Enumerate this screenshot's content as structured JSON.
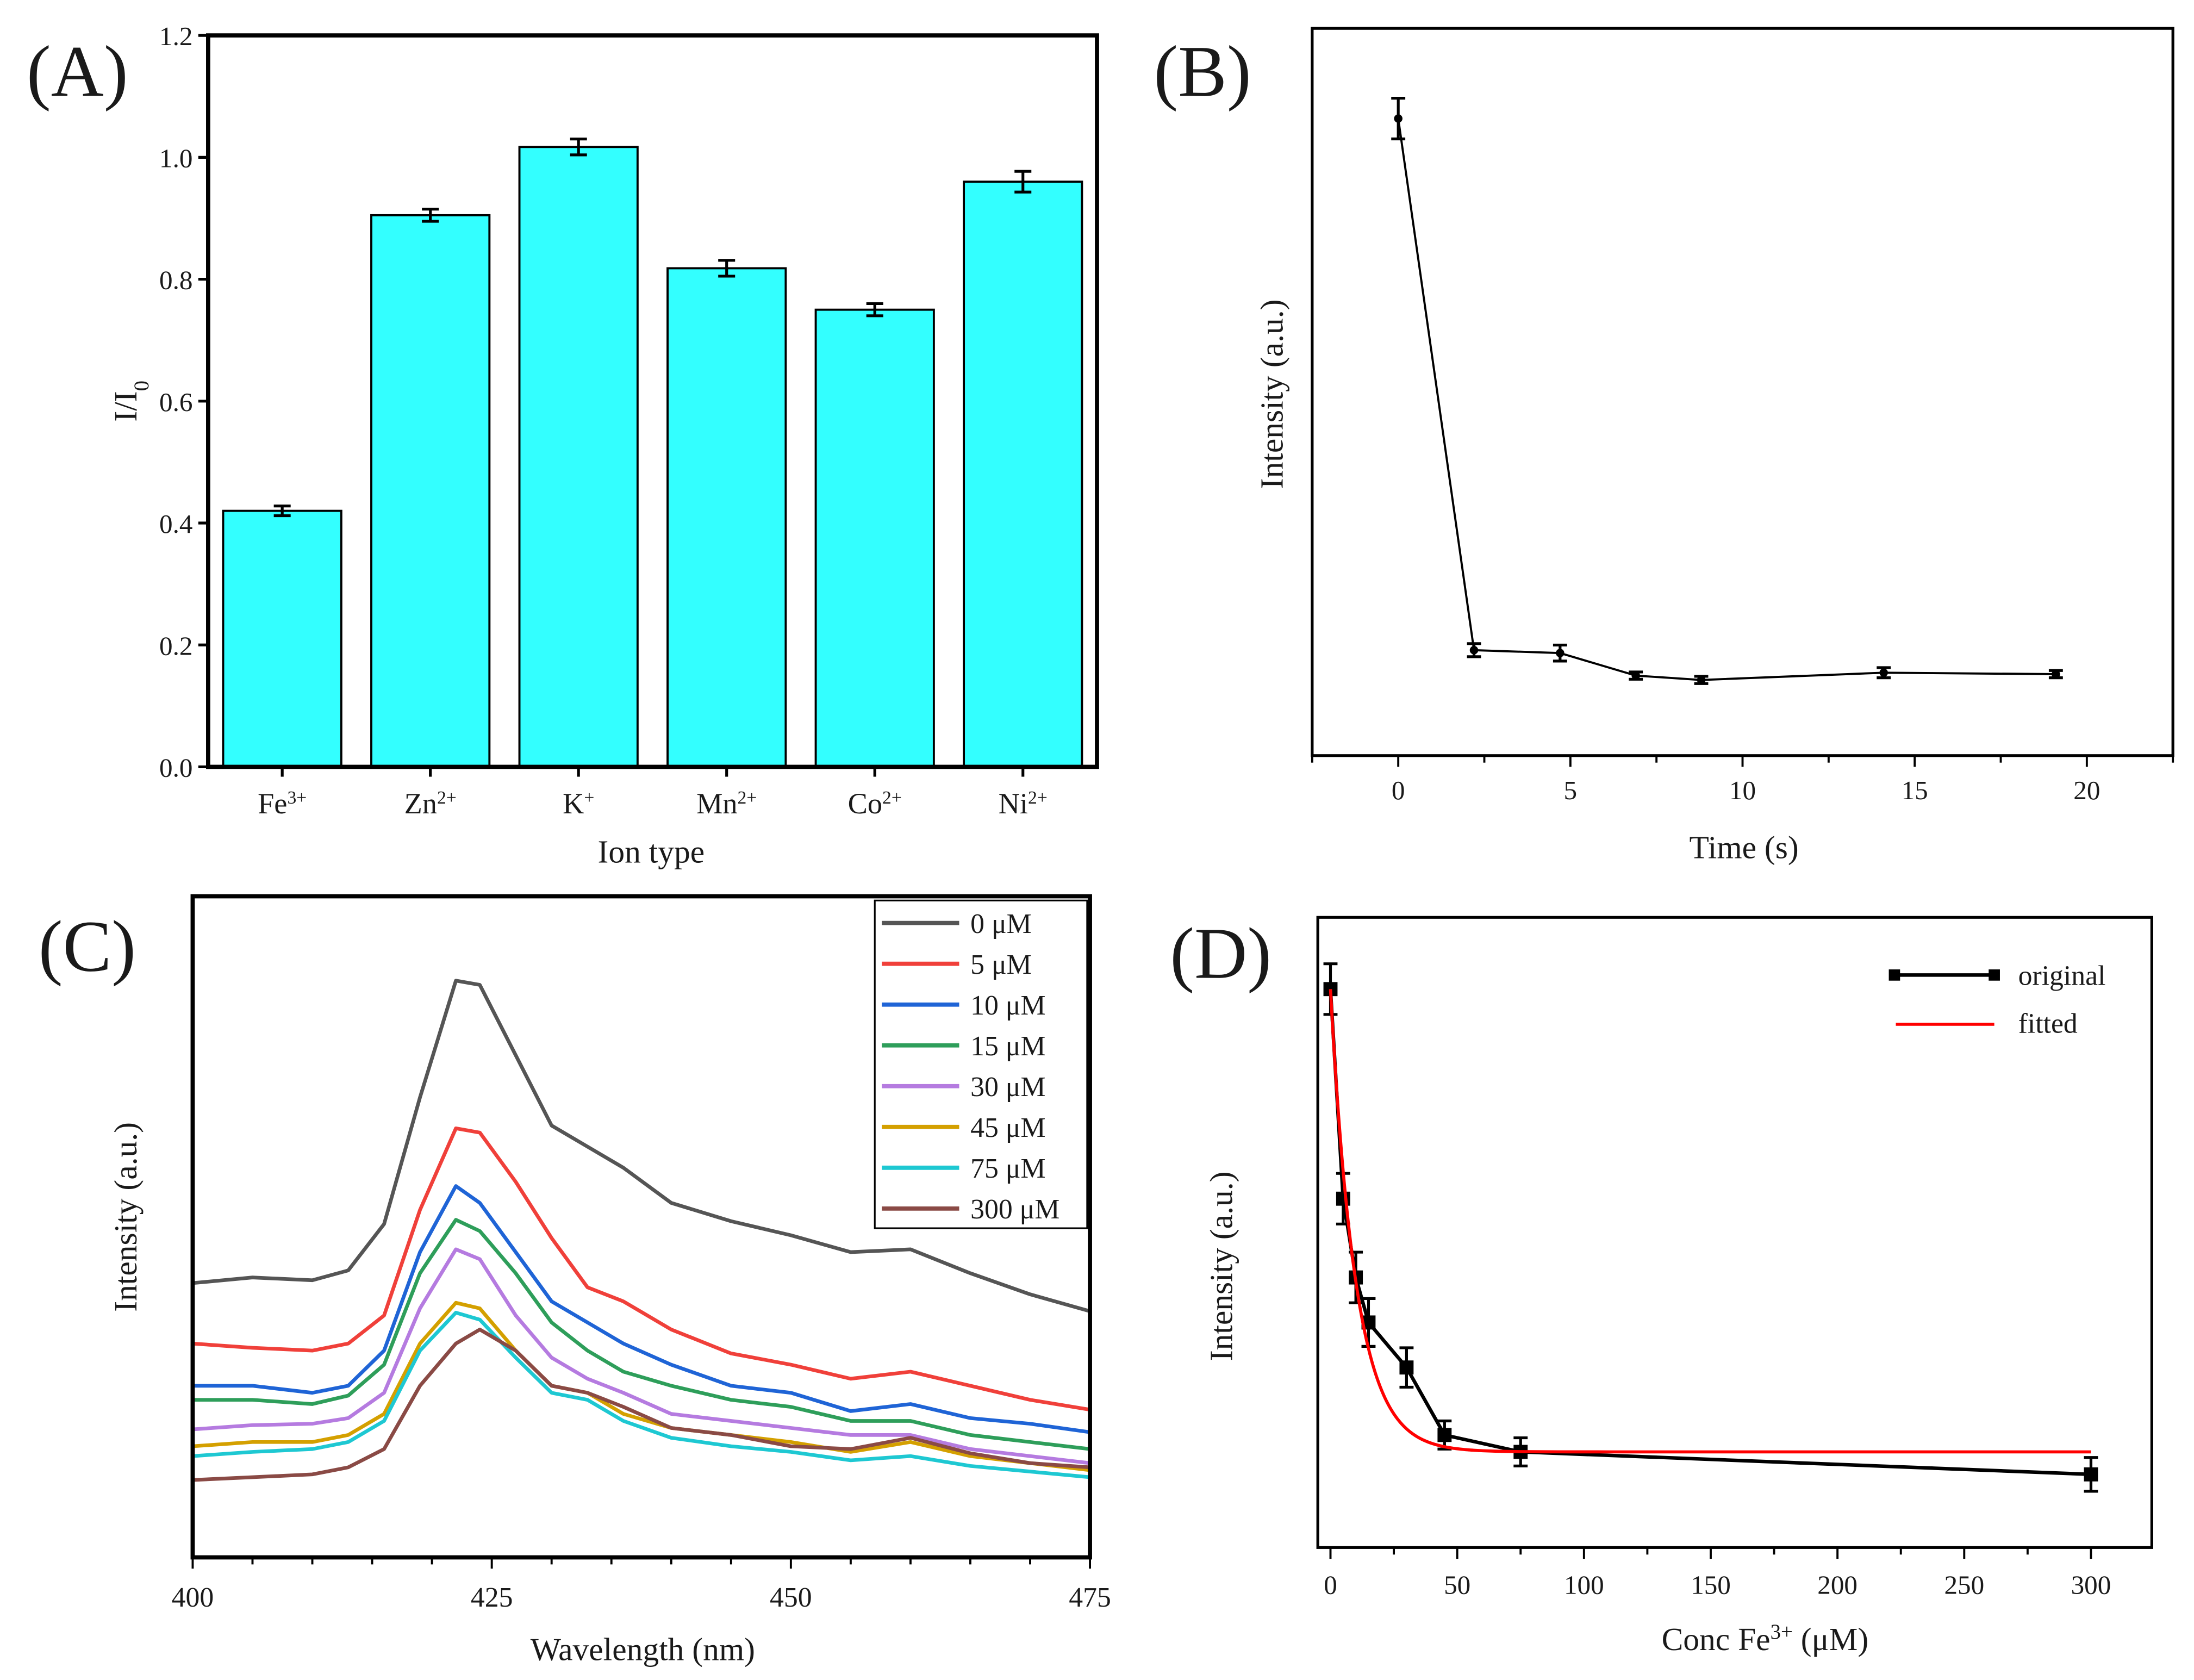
{
  "chart_data": [
    {
      "panel": "(A)",
      "type": "bar",
      "title": "",
      "xlabel": "Ion type",
      "ylabel": {
        "base": "I/I",
        "sub": "0"
      },
      "categories": [
        {
          "base": "Fe",
          "sup": "3+"
        },
        {
          "base": "Zn",
          "sup": "2+"
        },
        {
          "base": "K",
          "sup": "+"
        },
        {
          "base": "Mn",
          "sup": "2+"
        },
        {
          "base": "Co",
          "sup": "2+"
        },
        {
          "base": "Ni",
          "sup": "2+"
        }
      ],
      "values": [
        0.42,
        0.905,
        1.017,
        0.818,
        0.75,
        0.96
      ],
      "errors": [
        0.008,
        0.01,
        0.013,
        0.013,
        0.01,
        0.017
      ],
      "ylim": [
        0,
        1.2
      ],
      "yticks": [
        "0.0",
        "0.2",
        "0.4",
        "0.6",
        "0.8",
        "1.0",
        "1.2"
      ],
      "bar_color": "#33ffff"
    },
    {
      "panel": "(B)",
      "type": "line",
      "xlabel": "Time (s)",
      "ylabel": "Intensity (a.u.)",
      "x": [
        0,
        2.2,
        4.7,
        6.9,
        8.8,
        14.1,
        19.1
      ],
      "y": [
        0.876,
        0.145,
        0.141,
        0.11,
        0.104,
        0.114,
        0.112
      ],
      "errors": [
        0.028,
        0.009,
        0.011,
        0.005,
        0.005,
        0.007,
        0.005
      ],
      "xlim": [
        -2.5,
        22.5
      ],
      "ylim": [
        0,
        1
      ],
      "xticks": [
        "0",
        "5",
        "10",
        "15",
        "20"
      ],
      "color": "#000000"
    },
    {
      "panel": "(C)",
      "type": "line",
      "xlabel": "Wavelength (nm)",
      "ylabel": "Intensity (a.u.)",
      "xlim": [
        400,
        475
      ],
      "ylim": [
        0,
        470
      ],
      "xticks": [
        "400",
        "425",
        "450",
        "475"
      ],
      "legend_position": "top-right",
      "x": [
        400,
        405,
        410,
        413,
        416,
        419,
        422,
        424,
        427,
        430,
        433,
        436,
        440,
        445,
        450,
        455,
        460,
        465,
        470,
        475
      ],
      "series": [
        {
          "name": "0 μM",
          "color": "#555555",
          "values": [
            195,
            199,
            197,
            204,
            237,
            327,
            410,
            407,
            357,
            307,
            292,
            277,
            252,
            239,
            229,
            217,
            219,
            202,
            187,
            175
          ]
        },
        {
          "name": "5 μM",
          "color": "#f0403a",
          "values": [
            152,
            149,
            147,
            152,
            172,
            247,
            305,
            302,
            267,
            227,
            192,
            182,
            162,
            145,
            137,
            127,
            132,
            122,
            112,
            105
          ]
        },
        {
          "name": "10 μM",
          "color": "#1f64d6",
          "values": [
            122,
            122,
            117,
            122,
            147,
            217,
            264,
            252,
            217,
            182,
            167,
            152,
            137,
            122,
            117,
            104,
            109,
            99,
            95,
            89
          ]
        },
        {
          "name": "15 μM",
          "color": "#2e9e5a",
          "values": [
            112,
            112,
            109,
            115,
            137,
            202,
            240,
            232,
            202,
            167,
            147,
            132,
            122,
            112,
            107,
            97,
            97,
            87,
            82,
            77
          ]
        },
        {
          "name": "30 μM",
          "color": "#b57be0",
          "values": [
            91,
            94,
            95,
            99,
            117,
            177,
            219,
            212,
            172,
            142,
            127,
            117,
            102,
            97,
            92,
            87,
            87,
            77,
            72,
            67
          ]
        },
        {
          "name": "45 μM",
          "color": "#d4a000",
          "values": [
            79,
            82,
            82,
            87,
            102,
            152,
            181,
            177,
            147,
            122,
            117,
            102,
            92,
            87,
            82,
            75,
            82,
            72,
            67,
            62
          ]
        },
        {
          "name": "75 μM",
          "color": "#1ec8d2",
          "values": [
            72,
            75,
            77,
            82,
            97,
            147,
            174,
            169,
            142,
            117,
            112,
            97,
            85,
            79,
            75,
            69,
            72,
            65,
            61,
            57
          ]
        },
        {
          "name": "300 μM",
          "color": "#8a4a45",
          "values": [
            55,
            57,
            59,
            64,
            77,
            122,
            152,
            162,
            147,
            122,
            117,
            107,
            92,
            87,
            79,
            77,
            85,
            74,
            67,
            64
          ]
        }
      ]
    },
    {
      "panel": "(D)",
      "type": "scatter",
      "xlabel": {
        "base": "Conc Fe",
        "sup": "3+",
        "tail": " (μM)"
      },
      "ylabel": "Intensity (a.u.)",
      "xlim": [
        -5,
        324
      ],
      "ylim": [
        0,
        448
      ],
      "xticks": [
        "0",
        "50",
        "100",
        "150",
        "200",
        "250",
        "300"
      ],
      "legend_position": "top-right",
      "series": [
        {
          "name": "original",
          "color": "#000000",
          "x": [
            0,
            5,
            10,
            15,
            30,
            45,
            75,
            300
          ],
          "y": [
            397,
            248,
            192,
            160,
            128,
            80,
            68,
            52
          ],
          "errors": [
            18,
            18,
            18,
            17,
            14,
            10,
            10,
            12
          ]
        },
        {
          "name": "fitted",
          "color": "#ff0000",
          "model": "exponential decay",
          "y0": 68,
          "A": 329,
          "t": 10,
          "x_range": [
            0,
            300
          ]
        }
      ]
    }
  ]
}
